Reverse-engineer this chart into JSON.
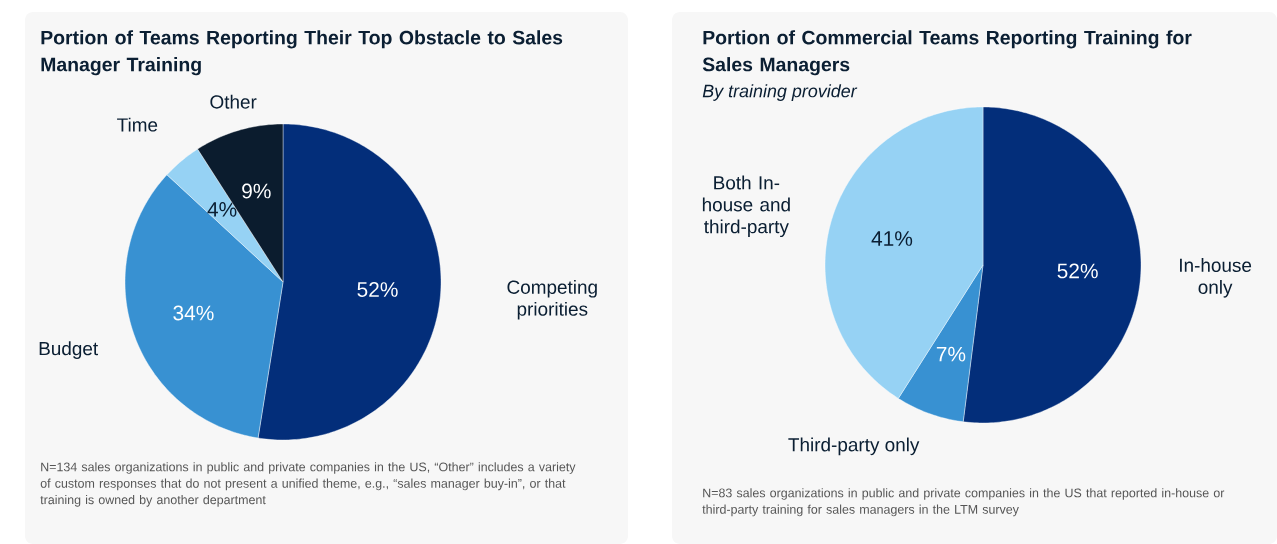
{
  "chart_data": [
    {
      "type": "pie",
      "title": "Portion of Teams Reporting Their Top Obstacle to Sales Manager Training",
      "categories": [
        "Competing priorities",
        "Budget",
        "Time",
        "Other"
      ],
      "values": [
        52,
        34,
        4,
        9
      ],
      "colors": [
        "#032e7a",
        "#3891d2",
        "#96d2f4",
        "#0b1c2e"
      ],
      "value_labels": [
        "52%",
        "34%",
        "4%",
        "9%"
      ],
      "annotations": [
        "N=134 sales organizations in public and private companies in the US, “Other” includes a variety of custom responses that do not present a unified theme, e.g., “sales manager buy-in”, or that training is owned by another department"
      ]
    },
    {
      "type": "pie",
      "title": "Portion of Commercial Teams Reporting Training for Sales Managers",
      "subtitle": "By training provider",
      "categories": [
        "In-house only",
        "Third-party only",
        "Both In-house and third-party"
      ],
      "values": [
        52,
        7,
        41
      ],
      "colors": [
        "#032e7a",
        "#3891d2",
        "#96d2f4"
      ],
      "value_labels": [
        "52%",
        "7%",
        "41%"
      ],
      "annotations": [
        "N=83 sales organizations in public and private companies in the US that reported in-house or third-party training for sales managers in the LTM survey"
      ]
    }
  ]
}
